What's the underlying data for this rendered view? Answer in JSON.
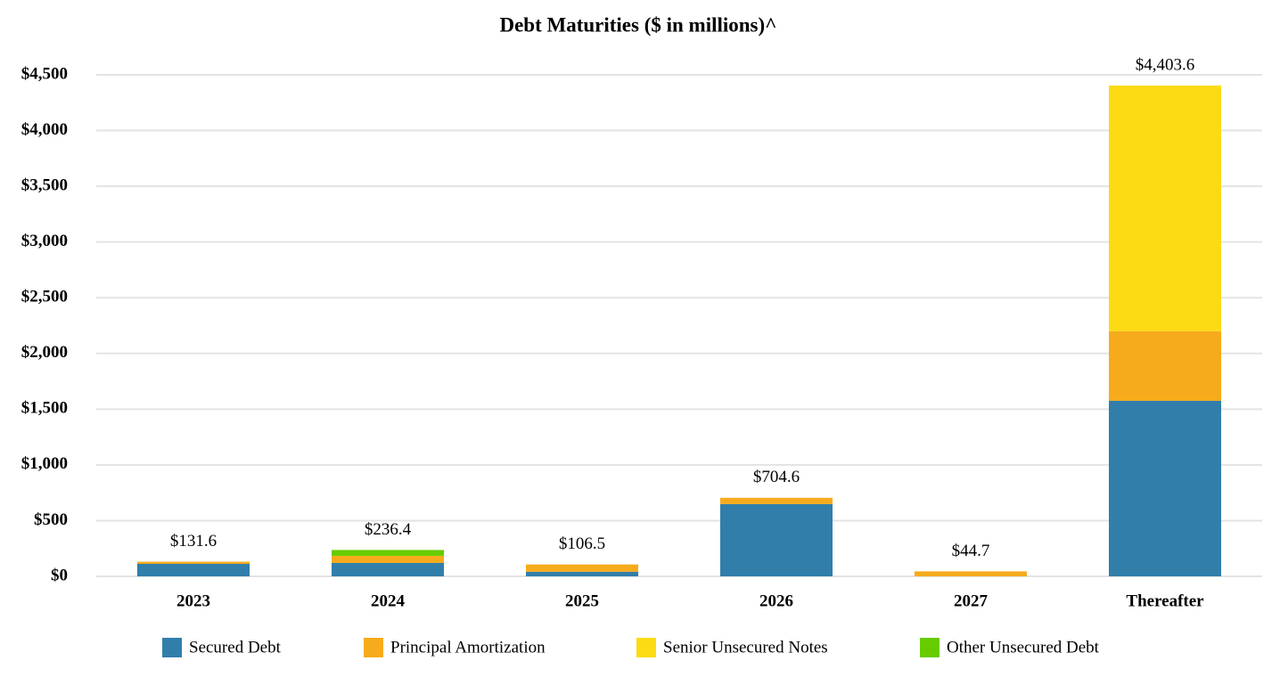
{
  "chart_data": {
    "type": "stacked_bar",
    "title": "Debt Maturities ($ in millions)^",
    "categories": [
      "2023",
      "2024",
      "2025",
      "2026",
      "2027",
      "Thereafter"
    ],
    "series": [
      {
        "name": "Secured Debt",
        "color": "#317eab",
        "values": [
          112.0,
          120.0,
          41.0,
          648.0,
          0,
          1575.0
        ]
      },
      {
        "name": "Principal Amortization",
        "color": "#f6ab1c",
        "values": [
          19.6,
          64.4,
          65.5,
          56.6,
          44.7,
          625.0
        ]
      },
      {
        "name": "Senior Unsecured Notes",
        "color": "#fcdb14",
        "values": [
          0,
          0,
          0,
          0,
          0,
          2203.6
        ]
      },
      {
        "name": "Other Unsecured Debt",
        "color": "#66cc00",
        "values": [
          0,
          52.0,
          0,
          0,
          0,
          0
        ]
      }
    ],
    "totals": {
      "values": [
        131.6,
        236.4,
        106.5,
        704.6,
        44.7,
        4403.6
      ],
      "value_labels": [
        "$131.6",
        "$236.4",
        "$106.5",
        "$704.6",
        "$44.7",
        "$4,403.6"
      ]
    },
    "ylim": [
      0,
      4500
    ],
    "yticks": [
      {
        "value": 0,
        "label": "$0"
      },
      {
        "value": 500,
        "label": "$500"
      },
      {
        "value": 1000,
        "label": "$1,000"
      },
      {
        "value": 1500,
        "label": "$1,500"
      },
      {
        "value": 2000,
        "label": "$2,000"
      },
      {
        "value": 2500,
        "label": "$2,500"
      },
      {
        "value": 3000,
        "label": "$3,000"
      },
      {
        "value": 3500,
        "label": "$3,500"
      },
      {
        "value": 4000,
        "label": "$4,000"
      },
      {
        "value": 4500,
        "label": "$4,500"
      }
    ],
    "grid": true
  }
}
